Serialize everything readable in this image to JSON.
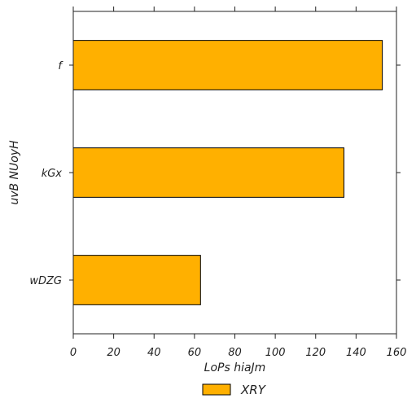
{
  "chart_data": {
    "type": "bar",
    "orientation": "horizontal",
    "categories": [
      "f",
      "kGx",
      "wDZG"
    ],
    "series": [
      {
        "name": "XRY",
        "values": [
          153,
          134,
          63
        ]
      }
    ],
    "title": "",
    "xlabel": "LoPs hiaJm",
    "ylabel": "uvB NUoyH",
    "xlim": [
      0,
      160
    ],
    "xticks": [
      0,
      20,
      40,
      60,
      80,
      100,
      120,
      140,
      160
    ],
    "grid": false,
    "legend_position": "bottom-center",
    "colors": {
      "bar": "#ffb000",
      "edge": "#000000",
      "axis": "#222222"
    }
  }
}
